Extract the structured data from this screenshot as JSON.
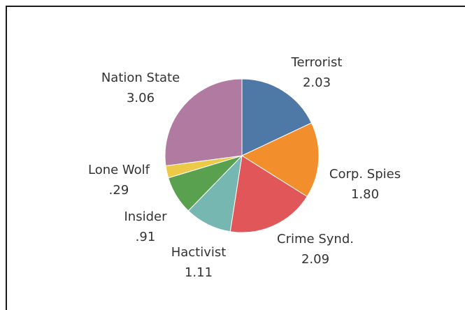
{
  "chart_data": {
    "type": "pie",
    "title": "",
    "start_angle_deg": 0,
    "direction": "clockwise",
    "slices": [
      {
        "label": "Terrorist",
        "value": 2.03,
        "value_text": "2.03",
        "color": "#4e79a7"
      },
      {
        "label": "Corp. Spies",
        "value": 1.8,
        "value_text": "1.80",
        "color": "#f28e2b"
      },
      {
        "label": "Crime Synd.",
        "value": 2.09,
        "value_text": "2.09",
        "color": "#e15759"
      },
      {
        "label": "Hactivist",
        "value": 1.11,
        "value_text": "1.11",
        "color": "#76b7b2"
      },
      {
        "label": "Insider",
        "value": 0.91,
        "value_text": ".91",
        "color": "#59a14f"
      },
      {
        "label": "Lone Wolf",
        "value": 0.29,
        "value_text": ".29",
        "color": "#edc948"
      },
      {
        "label": "Nation State",
        "value": 3.06,
        "value_text": "3.06",
        "color": "#b07aa1"
      }
    ]
  }
}
